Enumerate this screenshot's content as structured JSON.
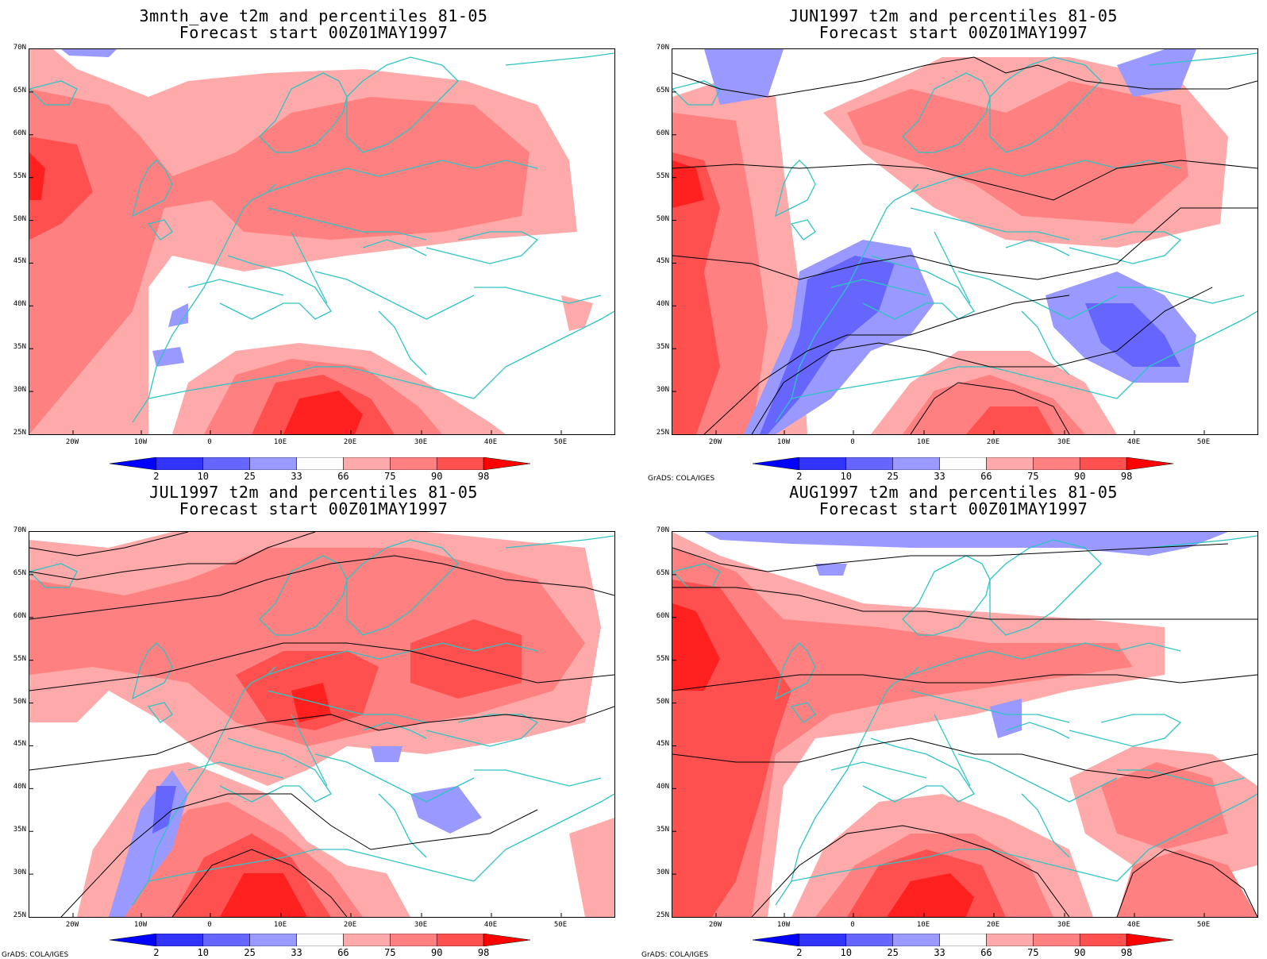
{
  "panels": [
    {
      "id": "p1",
      "title1": "3mnth_ave t2m and percentiles 81-05",
      "title2": "Forecast start 00Z01MAY1997",
      "credit": ""
    },
    {
      "id": "p2",
      "title1": "JUN1997 t2m and percentiles 81-05",
      "title2": "Forecast start 00Z01MAY1997",
      "credit": "GrADS: COLA/IGES"
    },
    {
      "id": "p3",
      "title1": "JUL1997 t2m and percentiles 81-05",
      "title2": "Forecast start 00Z01MAY1997",
      "credit": "GrADS: COLA/IGES"
    },
    {
      "id": "p4",
      "title1": "AUG1997 t2m and percentiles 81-05",
      "title2": "Forecast start 00Z01MAY1997",
      "credit": "GrADS: COLA/IGES"
    }
  ],
  "lat_labels": [
    "70N",
    "65N",
    "60N",
    "55N",
    "50N",
    "45N",
    "40N",
    "35N",
    "30N",
    "25N"
  ],
  "lon_labels": [
    "20W",
    "10W",
    "0",
    "10E",
    "20E",
    "30E",
    "40E",
    "50E"
  ],
  "colorbar": {
    "labels": [
      "2",
      "10",
      "25",
      "33",
      "66",
      "75",
      "90",
      "98"
    ],
    "colors": [
      "#0000ff",
      "#3333ff",
      "#6666ff",
      "#9999ff",
      "#aaaaff",
      "#ffffff",
      "#ffaaaa",
      "#ff8080",
      "#ff5050",
      "#ff2020",
      "#ff0000"
    ]
  },
  "palette": {
    "coast": "#2ec4c4",
    "contour": "#000000"
  }
}
